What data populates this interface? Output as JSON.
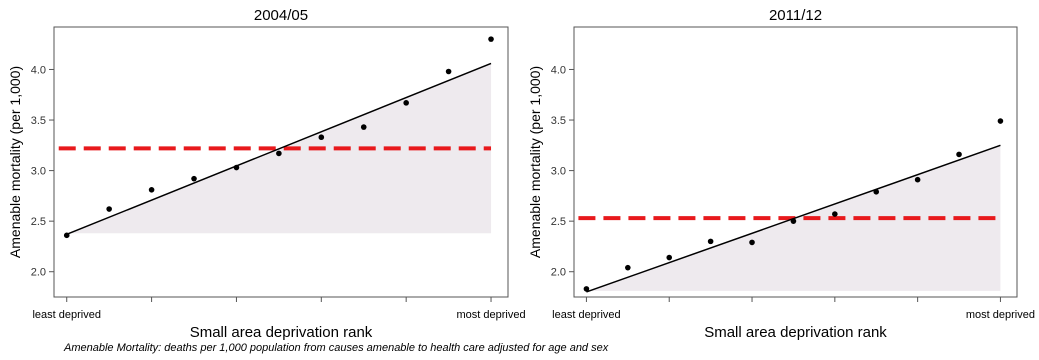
{
  "footnote": "Amenable Mortality: deaths per 1,000 population from causes amenable to health care adjusted for age and sex",
  "colors": {
    "mean_line": "#e8191c",
    "shade": "#eeeaee",
    "points": "#000000",
    "fit_line": "#000000"
  },
  "chart_data": [
    {
      "type": "scatter",
      "title": "2004/05",
      "xlabel": "Small area deprivation rank",
      "ylabel": "Amenable mortality (per 1,000)",
      "x_tick_labels": {
        "first": "least deprived",
        "last": "most deprived"
      },
      "x": [
        1,
        2,
        3,
        4,
        5,
        6,
        7,
        8,
        9,
        10,
        11
      ],
      "y": [
        2.36,
        2.62,
        2.81,
        2.92,
        3.03,
        3.17,
        3.33,
        3.43,
        3.67,
        3.98,
        4.3
      ],
      "fit_line": {
        "x": [
          1,
          11
        ],
        "y": [
          2.37,
          4.06
        ]
      },
      "shaded_area": {
        "x": [
          1,
          11
        ],
        "baseline": 2.38
      },
      "mean_line": 3.22,
      "xlim": [
        0.7,
        11.4
      ],
      "ylim": [
        1.75,
        4.42
      ],
      "yticks": [
        2.0,
        2.5,
        3.0,
        3.5,
        4.0
      ],
      "grid": false
    },
    {
      "type": "scatter",
      "title": "2011/12",
      "xlabel": "Small area deprivation rank",
      "ylabel": "Amenable mortality (per 1,000)",
      "x_tick_labels": {
        "first": "least deprived",
        "last": "most deprived"
      },
      "x": [
        1,
        2,
        3,
        4,
        5,
        6,
        7,
        8,
        9,
        10,
        11
      ],
      "y": [
        1.83,
        2.04,
        2.14,
        2.3,
        2.29,
        2.5,
        2.57,
        2.79,
        2.91,
        3.16,
        3.49
      ],
      "fit_line": {
        "x": [
          1,
          11
        ],
        "y": [
          1.8,
          3.25
        ]
      },
      "shaded_area": {
        "x": [
          1,
          11
        ],
        "baseline": 1.81
      },
      "mean_line": 2.53,
      "xlim": [
        0.7,
        11.4
      ],
      "ylim": [
        1.75,
        4.42
      ],
      "yticks": [
        2.0,
        2.5,
        3.0,
        3.5,
        4.0
      ],
      "grid": false
    }
  ]
}
